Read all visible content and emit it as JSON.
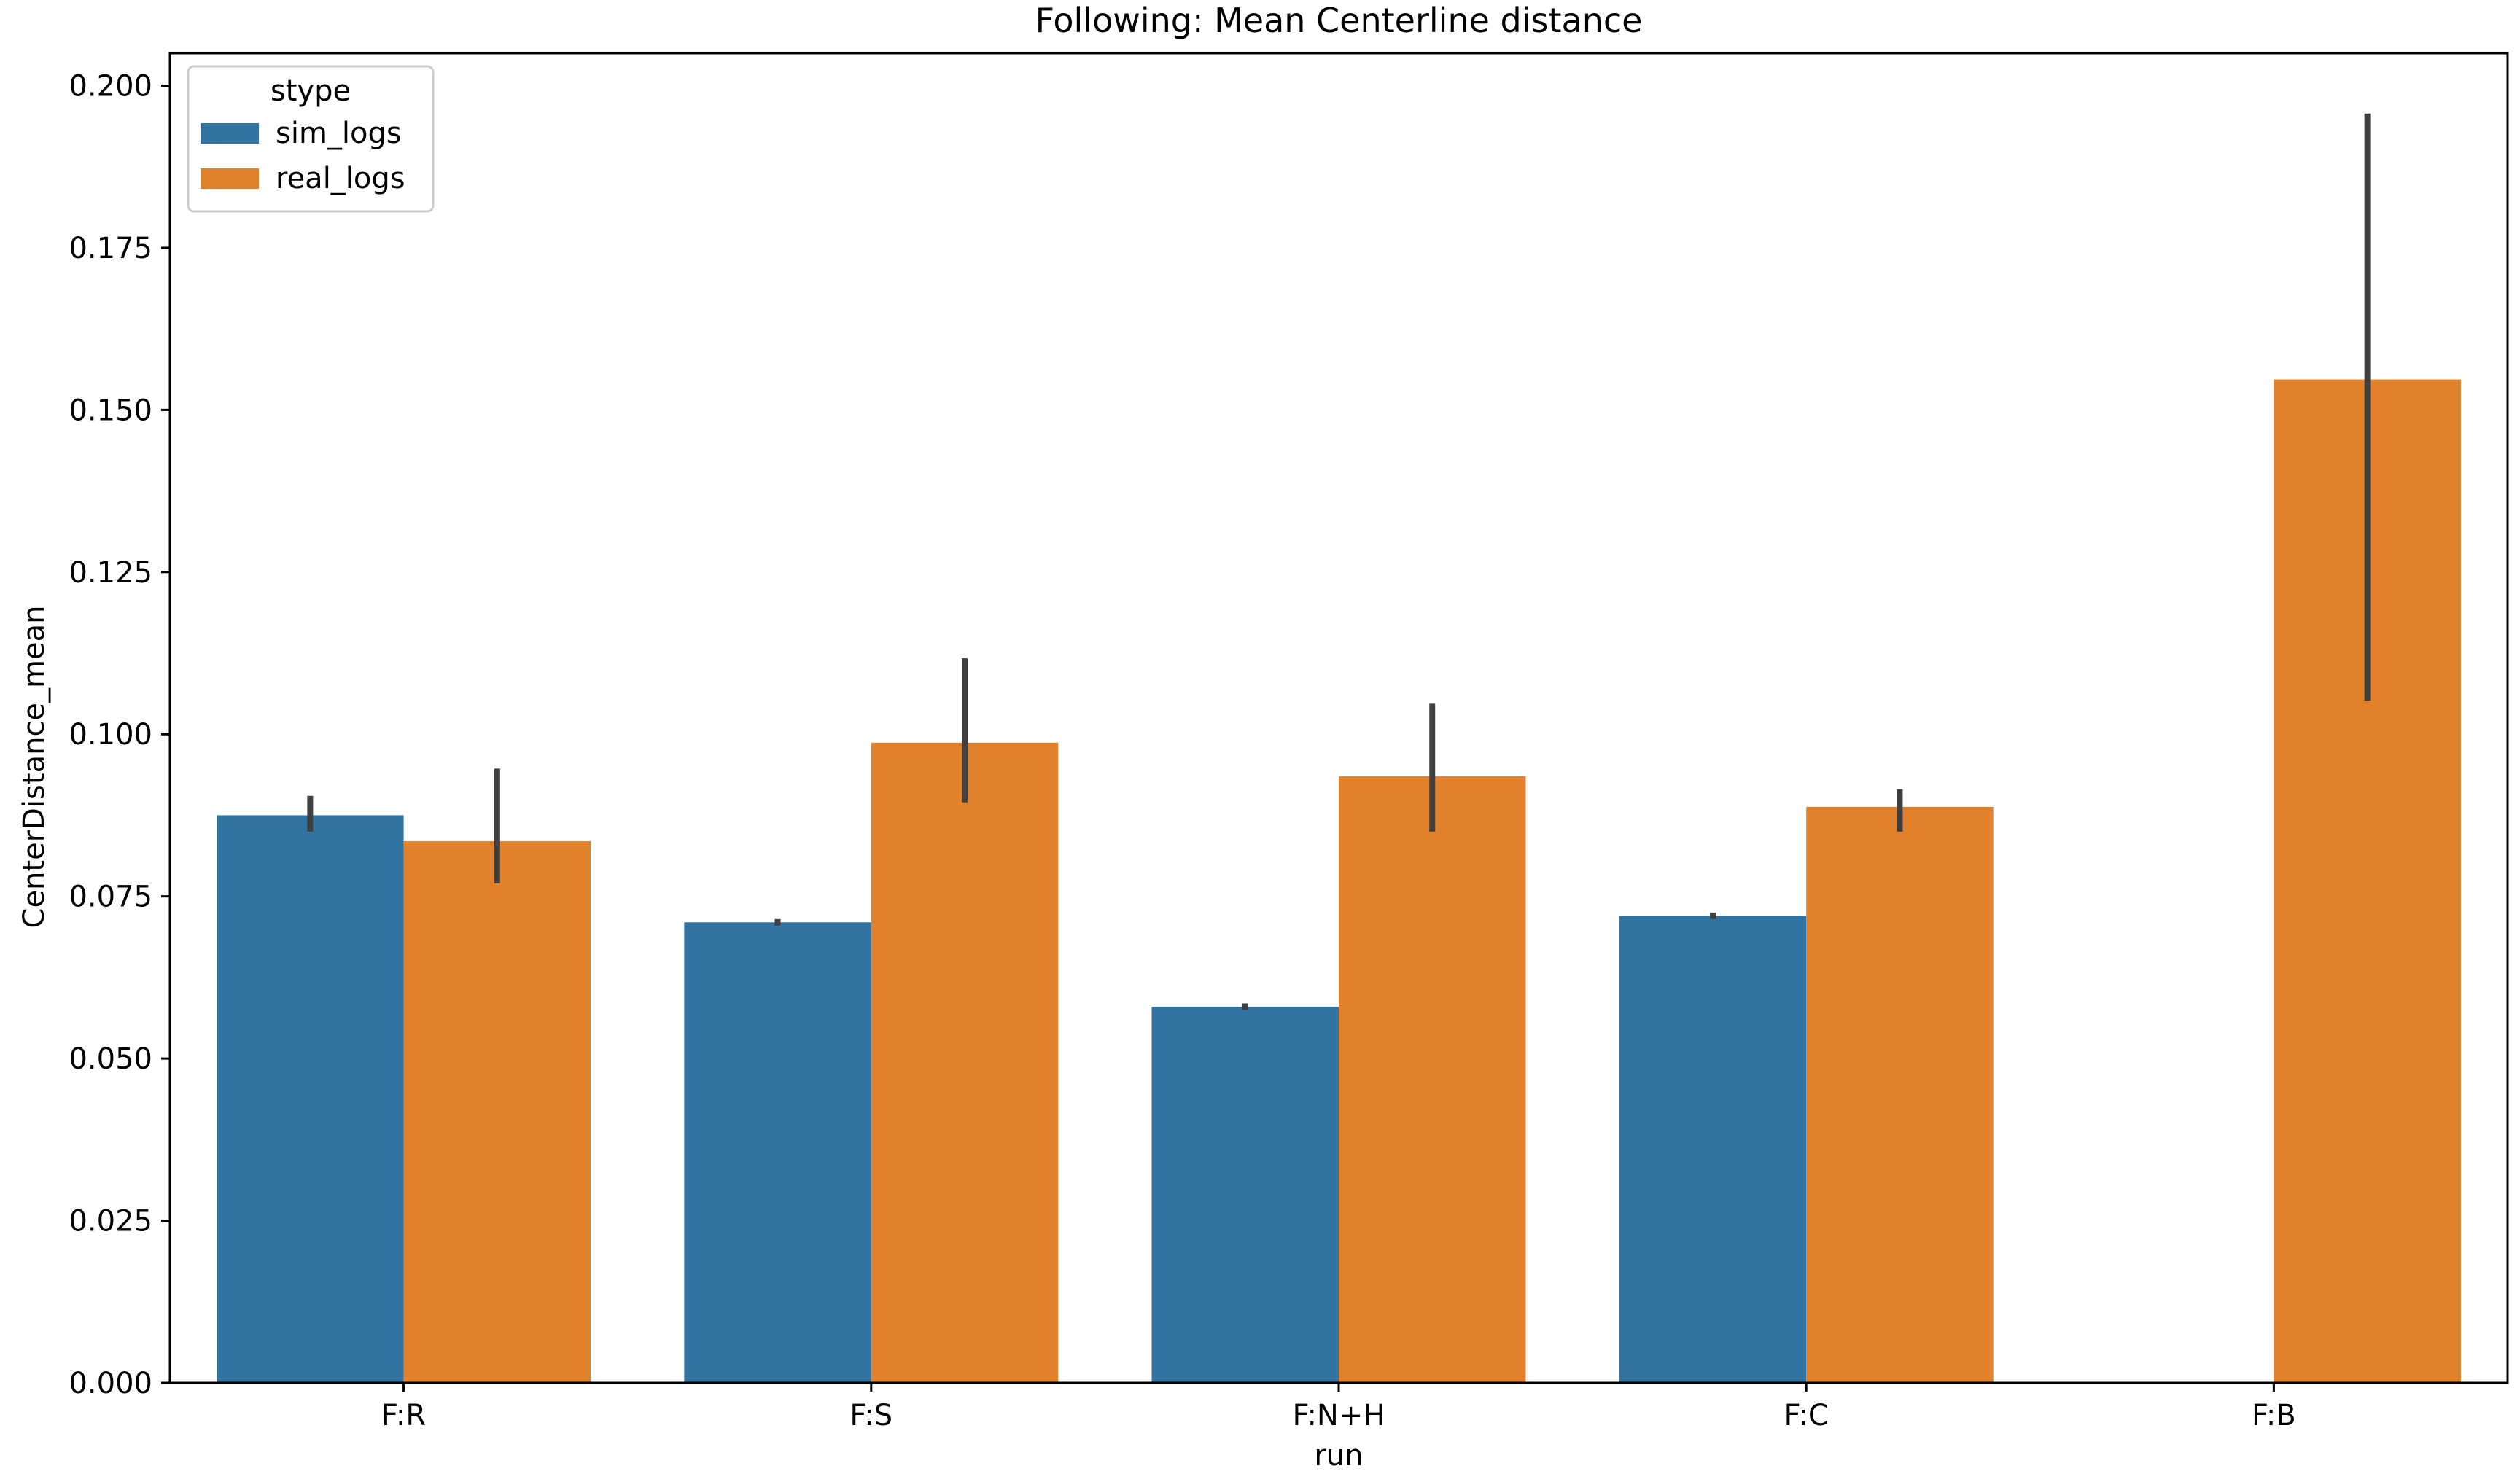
{
  "chart_data": {
    "type": "bar",
    "title": "Following: Mean Centerline distance",
    "xlabel": "run",
    "ylabel": "CenterDistance_mean",
    "categories": [
      "F:R",
      "F:S",
      "F:N+H",
      "F:C",
      "F:B"
    ],
    "ylim": [
      0,
      0.205
    ],
    "yticks": [
      0.0,
      0.025,
      0.05,
      0.075,
      0.1,
      0.125,
      0.15,
      0.175,
      0.2
    ],
    "ytick_labels": [
      "0.000",
      "0.025",
      "0.050",
      "0.075",
      "0.100",
      "0.125",
      "0.150",
      "0.175",
      "0.200"
    ],
    "grid": false,
    "legend": {
      "title": "stype",
      "position": "top-left"
    },
    "series": [
      {
        "name": "sim_logs",
        "color": "#3274a1",
        "values": [
          0.0875,
          0.071,
          0.058,
          0.072,
          null
        ],
        "ci_low": [
          0.085,
          0.0705,
          0.0575,
          0.0715,
          null
        ],
        "ci_high": [
          0.0905,
          0.0715,
          0.0585,
          0.0725,
          null
        ]
      },
      {
        "name": "real_logs",
        "color": "#e1812c",
        "values": [
          0.0835,
          0.0987,
          0.0935,
          0.0888,
          0.1547
        ],
        "ci_low": [
          0.077,
          0.0895,
          0.085,
          0.085,
          0.1052
        ],
        "ci_high": [
          0.0947,
          0.1117,
          0.1047,
          0.0915,
          0.1957
        ]
      }
    ],
    "errorbar_color": "#3f3f3f"
  }
}
